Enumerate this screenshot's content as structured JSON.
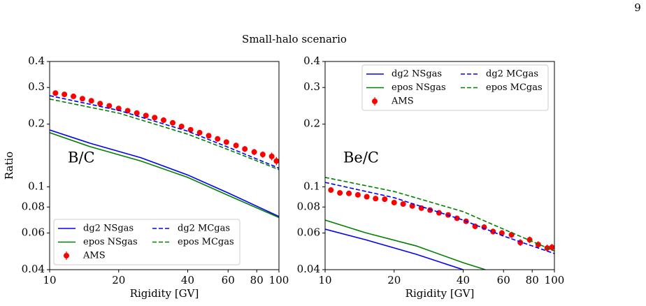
{
  "page_number": "9",
  "title": "Small-halo scenario",
  "chart_data": [
    {
      "type": "line",
      "xlabel": "Rigidity [GV]",
      "ylabel": "Ratio",
      "annotation": "B/C",
      "xscale": "log",
      "yscale": "log",
      "xlim": [
        10,
        100
      ],
      "ylim": [
        0.04,
        0.4
      ],
      "xticks": [
        10,
        20,
        40,
        60,
        80,
        100
      ],
      "yticks": [
        0.04,
        0.06,
        0.08,
        0.1,
        0.2,
        0.3,
        0.4
      ],
      "legend": "lower left",
      "series": [
        {
          "name": "dg2 NSgas",
          "color": "#0000ff",
          "style": "solid",
          "x": [
            10,
            15,
            25,
            40,
            60,
            100
          ],
          "values": [
            0.1876,
            0.162,
            0.138,
            0.114,
            0.0935,
            0.072
          ]
        },
        {
          "name": "epos NSgas",
          "color": "#008000",
          "style": "solid",
          "x": [
            10,
            15,
            25,
            40,
            60,
            100
          ],
          "values": [
            0.182,
            0.156,
            0.133,
            0.111,
            0.091,
            0.0712
          ]
        },
        {
          "name": "AMS",
          "color": "#ff0000",
          "style": "errorbar",
          "x": [
            10.6,
            11.6,
            12.7,
            13.9,
            15.2,
            16.6,
            18.2,
            20,
            21.9,
            24,
            26.3,
            28.7,
            31.4,
            34.4,
            37.6,
            41.2,
            45.1,
            49.4,
            54,
            59,
            65,
            71,
            78,
            85,
            93,
            97.5
          ],
          "values": [
            0.282,
            0.278,
            0.272,
            0.265,
            0.259,
            0.251,
            0.245,
            0.238,
            0.232,
            0.226,
            0.22,
            0.215,
            0.209,
            0.203,
            0.195,
            0.188,
            0.182,
            0.176,
            0.17,
            0.164,
            0.158,
            0.152,
            0.147,
            0.143,
            0.14,
            0.133
          ],
          "errors": [
            0.005,
            0.005,
            0.005,
            0.005,
            0.005,
            0.005,
            0.005,
            0.005,
            0.005,
            0.005,
            0.005,
            0.005,
            0.005,
            0.005,
            0.005,
            0.005,
            0.005,
            0.005,
            0.005,
            0.005,
            0.005,
            0.005,
            0.005,
            0.005,
            0.006,
            0.006
          ]
        },
        {
          "name": "dg2 MCgas",
          "color": "#0000ff",
          "style": "dashed",
          "x": [
            10,
            20,
            40,
            60,
            100
          ],
          "values": [
            0.274,
            0.233,
            0.185,
            0.155,
            0.123
          ]
        },
        {
          "name": "epos MCgas",
          "color": "#008000",
          "style": "dashed",
          "x": [
            10,
            20,
            40,
            60,
            100
          ],
          "values": [
            0.264,
            0.226,
            0.179,
            0.151,
            0.121
          ]
        }
      ]
    },
    {
      "type": "line",
      "xlabel": "Rigidity [GV]",
      "annotation": "Be/C",
      "xscale": "log",
      "yscale": "log",
      "xlim": [
        10,
        100
      ],
      "ylim": [
        0.04,
        0.4
      ],
      "xticks": [
        10,
        20,
        40,
        60,
        80,
        100
      ],
      "yticks": [
        0.04,
        0.06,
        0.08,
        0.1,
        0.2,
        0.3,
        0.4
      ],
      "legend": "upper right",
      "series": [
        {
          "name": "dg2 NSgas",
          "color": "#0000ff",
          "style": "solid",
          "x": [
            10,
            15,
            25,
            40
          ],
          "values": [
            0.0626,
            0.0557,
            0.0474,
            0.04
          ]
        },
        {
          "name": "epos NSgas",
          "color": "#008000",
          "style": "solid",
          "x": [
            10,
            15,
            25,
            40,
            50
          ],
          "values": [
            0.0692,
            0.0602,
            0.052,
            0.0432,
            0.04
          ]
        },
        {
          "name": "AMS",
          "color": "#ff0000",
          "style": "errorbar",
          "x": [
            10.6,
            11.6,
            12.7,
            13.9,
            15.2,
            16.6,
            18.2,
            20,
            21.9,
            24,
            26.3,
            28.7,
            31.4,
            34.4,
            37.6,
            41.2,
            45.1,
            49.4,
            54,
            59,
            65,
            71,
            78,
            85,
            93,
            97.5
          ],
          "values": [
            0.0965,
            0.0935,
            0.093,
            0.0915,
            0.0896,
            0.0878,
            0.0872,
            0.084,
            0.0827,
            0.0809,
            0.079,
            0.0773,
            0.075,
            0.0733,
            0.0706,
            0.0683,
            0.0646,
            0.064,
            0.061,
            0.06,
            0.0588,
            0.054,
            0.0557,
            0.0528,
            0.0508,
            0.0512
          ],
          "errors": [
            0.002,
            0.002,
            0.002,
            0.002,
            0.002,
            0.002,
            0.002,
            0.002,
            0.002,
            0.002,
            0.002,
            0.002,
            0.002,
            0.002,
            0.002,
            0.002,
            0.002,
            0.002,
            0.002,
            0.002,
            0.002,
            0.002,
            0.002,
            0.002,
            0.002,
            0.002
          ]
        },
        {
          "name": "dg2 MCgas",
          "color": "#0000ff",
          "style": "dashed",
          "x": [
            10,
            20,
            40,
            60,
            100
          ],
          "values": [
            0.105,
            0.0887,
            0.0692,
            0.058,
            0.0478
          ]
        },
        {
          "name": "epos MCgas",
          "color": "#008000",
          "style": "dashed",
          "x": [
            10,
            20,
            40,
            60,
            100
          ],
          "values": [
            0.111,
            0.095,
            0.076,
            0.0626,
            0.0492
          ]
        }
      ]
    }
  ]
}
